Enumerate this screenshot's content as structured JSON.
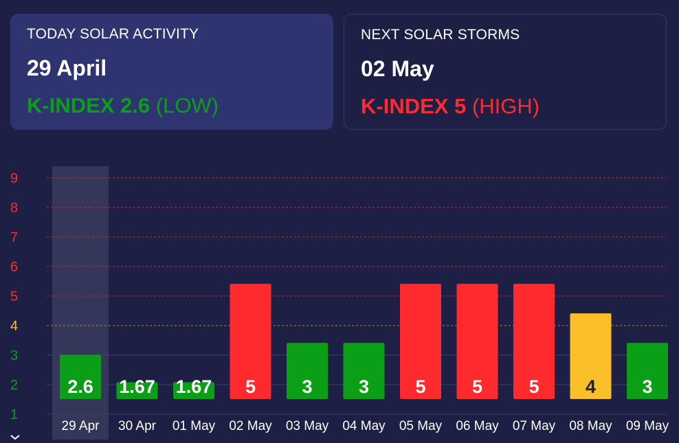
{
  "today": {
    "label": "TODAY SOLAR ACTIVITY",
    "date": "29 April",
    "kindex_text": "K-INDEX 2.6",
    "level": "(LOW)",
    "color": "#0a9f16"
  },
  "next": {
    "label": "NEXT SOLAR STORMS",
    "date": "02 May",
    "kindex_text": "K-INDEX 5",
    "level": "(HIGH)",
    "color": "#ff2a2e"
  },
  "colors": {
    "low": "#0a9f16",
    "moderate": "#fbbf2a",
    "high": "#ff2a2e",
    "highlight": "#34365a",
    "grid_red": "#b0303c",
    "grid_yellow": "#a88a2e",
    "grid_plain": "#3b3f6a"
  },
  "chart_data": {
    "type": "bar",
    "categories": [
      "29 Apr",
      "30 Apr",
      "01 May",
      "02 May",
      "03 May",
      "04 May",
      "05 May",
      "06 May",
      "07 May",
      "08 May",
      "09 May"
    ],
    "values": [
      2.6,
      1.67,
      1.67,
      5,
      3,
      3,
      5,
      5,
      5,
      4,
      3
    ],
    "value_labels": [
      "2.6",
      "1.67",
      "1.67",
      "5",
      "3",
      "3",
      "5",
      "5",
      "5",
      "4",
      "3"
    ],
    "y_ticks": [
      "1",
      "2",
      "3",
      "4",
      "5",
      "6",
      "7",
      "8",
      "9"
    ],
    "ylim": [
      1,
      9
    ],
    "highlighted_category": "29 Apr",
    "grid": true
  }
}
